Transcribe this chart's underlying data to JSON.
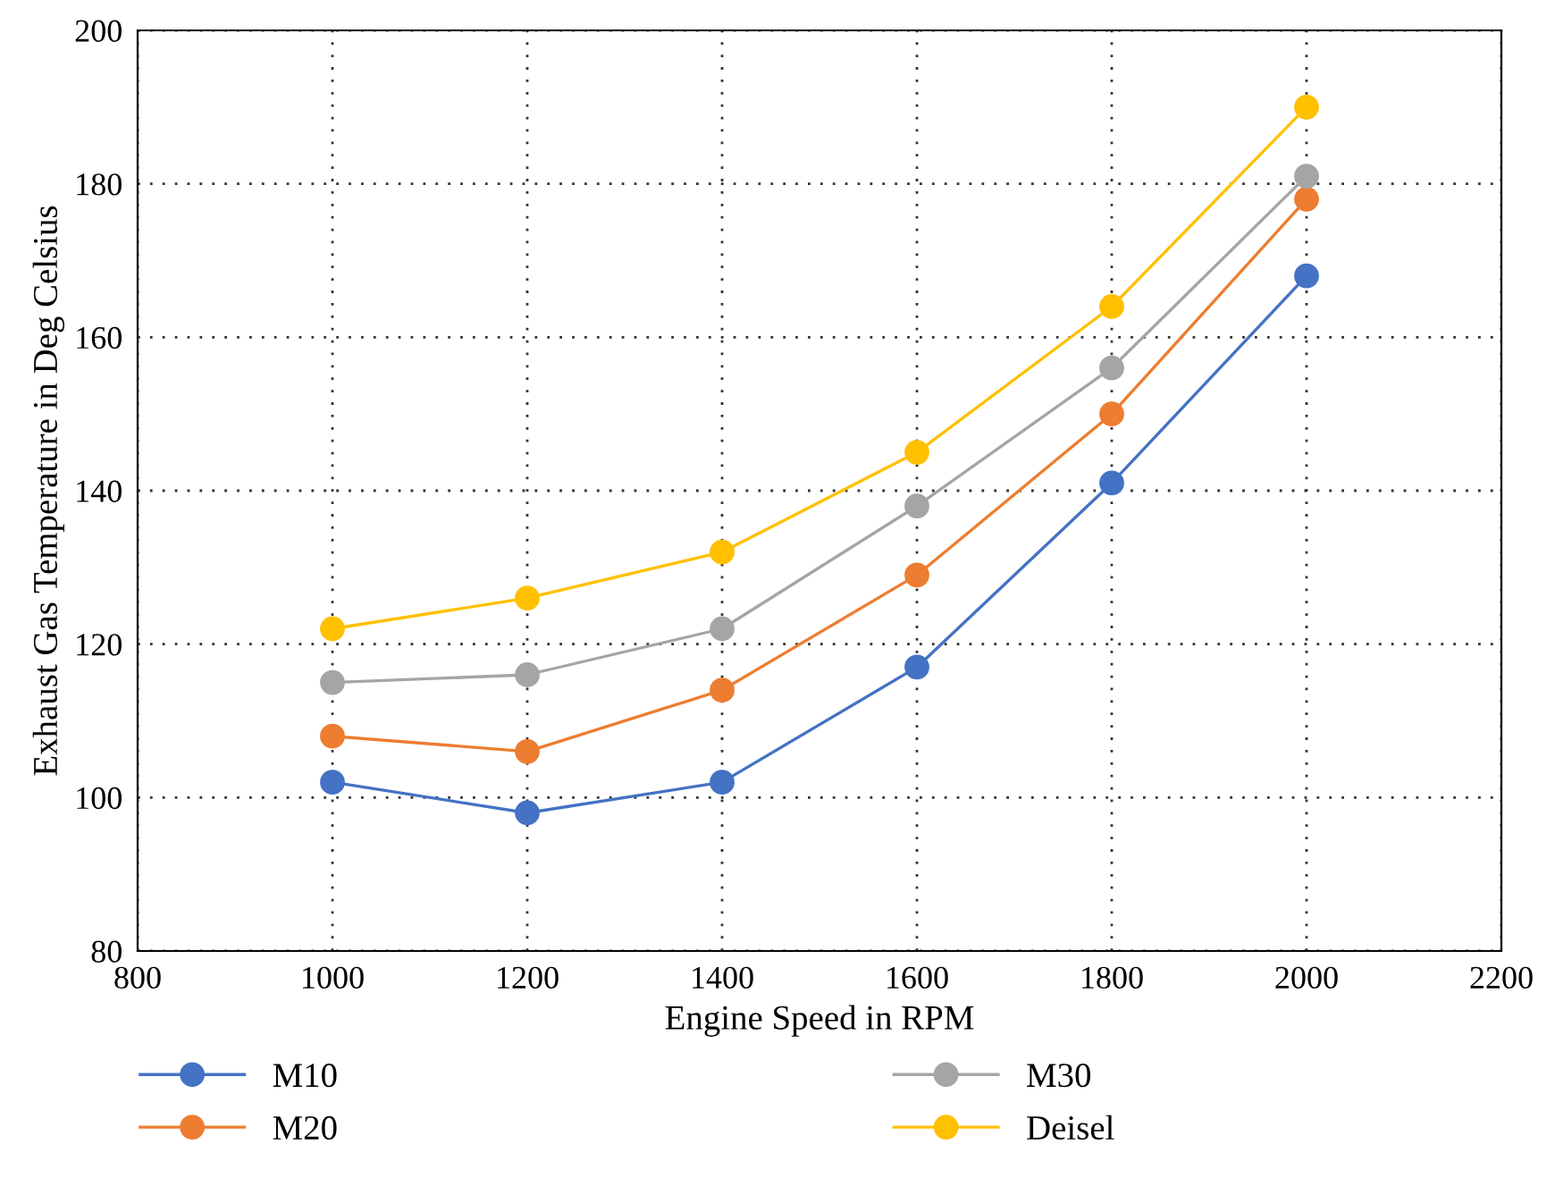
{
  "chart_data": {
    "type": "line",
    "xlabel": "Engine Speed in RPM",
    "ylabel": "Exhaust Gas Temperature in Deg Celsius",
    "x": [
      1000,
      1200,
      1400,
      1600,
      1800,
      2000
    ],
    "series": [
      {
        "name": "M10",
        "color": "#4472c4",
        "values": [
          102,
          98,
          102,
          117,
          141,
          168
        ]
      },
      {
        "name": "M20",
        "color": "#ed7d31",
        "values": [
          108,
          106,
          114,
          129,
          150,
          178
        ]
      },
      {
        "name": "M30",
        "color": "#a5a5a5",
        "values": [
          115,
          116,
          122,
          138,
          156,
          181
        ]
      },
      {
        "name": "Deisel",
        "color": "#ffc000",
        "values": [
          122,
          126,
          132,
          145,
          164,
          190
        ]
      }
    ],
    "xlim": [
      800,
      2200
    ],
    "xticks": [
      800,
      1000,
      1200,
      1400,
      1600,
      1800,
      2000,
      2200
    ],
    "ylim": [
      80,
      200
    ],
    "yticks": [
      80,
      100,
      120,
      140,
      160,
      180,
      200
    ],
    "grid": true,
    "legend": "bottom",
    "marker": "circle",
    "line_style": "solid"
  }
}
